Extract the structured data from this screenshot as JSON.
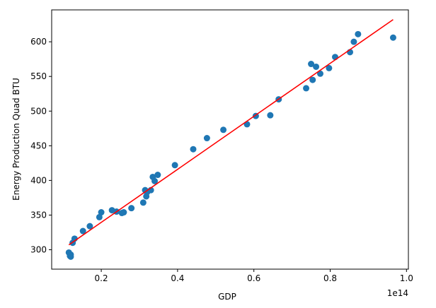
{
  "chart_data": {
    "type": "scatter",
    "title": "",
    "xlabel": "GDP",
    "ylabel": "Energy Production Quad BTU",
    "x_offset_label": "1e14",
    "x_scale": 100000000000000.0,
    "xlim": [
      0.07,
      1.005
    ],
    "ylim": [
      272,
      646
    ],
    "x_ticks": [
      0.2,
      0.4,
      0.6,
      0.8,
      1.0
    ],
    "x_tick_labels": [
      "0.2",
      "0.4",
      "0.6",
      "0.8",
      "1.0"
    ],
    "y_ticks": [
      300,
      350,
      400,
      450,
      500,
      550,
      600
    ],
    "y_tick_labels": [
      "300",
      "350",
      "400",
      "450",
      "500",
      "550",
      "600"
    ],
    "grid": false,
    "marker_color": "#1f77b4",
    "fit_line_color": "#ff0000",
    "series": [
      {
        "points": [
          [
            0.115,
            296
          ],
          [
            0.118,
            291
          ],
          [
            0.12,
            290
          ],
          [
            0.12,
            293
          ],
          [
            0.125,
            310
          ],
          [
            0.13,
            316
          ],
          [
            0.152,
            327
          ],
          [
            0.17,
            334
          ],
          [
            0.195,
            347
          ],
          [
            0.2,
            354
          ],
          [
            0.228,
            357
          ],
          [
            0.24,
            355
          ],
          [
            0.254,
            353
          ],
          [
            0.259,
            354
          ],
          [
            0.279,
            360
          ],
          [
            0.31,
            368
          ],
          [
            0.315,
            386
          ],
          [
            0.318,
            377
          ],
          [
            0.32,
            383
          ],
          [
            0.33,
            386
          ],
          [
            0.335,
            405
          ],
          [
            0.34,
            399
          ],
          [
            0.348,
            408
          ],
          [
            0.393,
            422
          ],
          [
            0.441,
            445
          ],
          [
            0.477,
            461
          ],
          [
            0.52,
            473
          ],
          [
            0.582,
            481
          ],
          [
            0.605,
            493
          ],
          [
            0.643,
            494
          ],
          [
            0.665,
            517
          ],
          [
            0.737,
            533
          ],
          [
            0.75,
            568
          ],
          [
            0.754,
            545
          ],
          [
            0.763,
            564
          ],
          [
            0.774,
            554
          ],
          [
            0.797,
            562
          ],
          [
            0.813,
            578
          ],
          [
            0.852,
            585
          ],
          [
            0.862,
            600
          ],
          [
            0.873,
            611
          ],
          [
            0.965,
            606
          ]
        ]
      }
    ],
    "fit_line": {
      "x": [
        0.115,
        0.965
      ],
      "y": [
        307,
        632
      ]
    }
  }
}
